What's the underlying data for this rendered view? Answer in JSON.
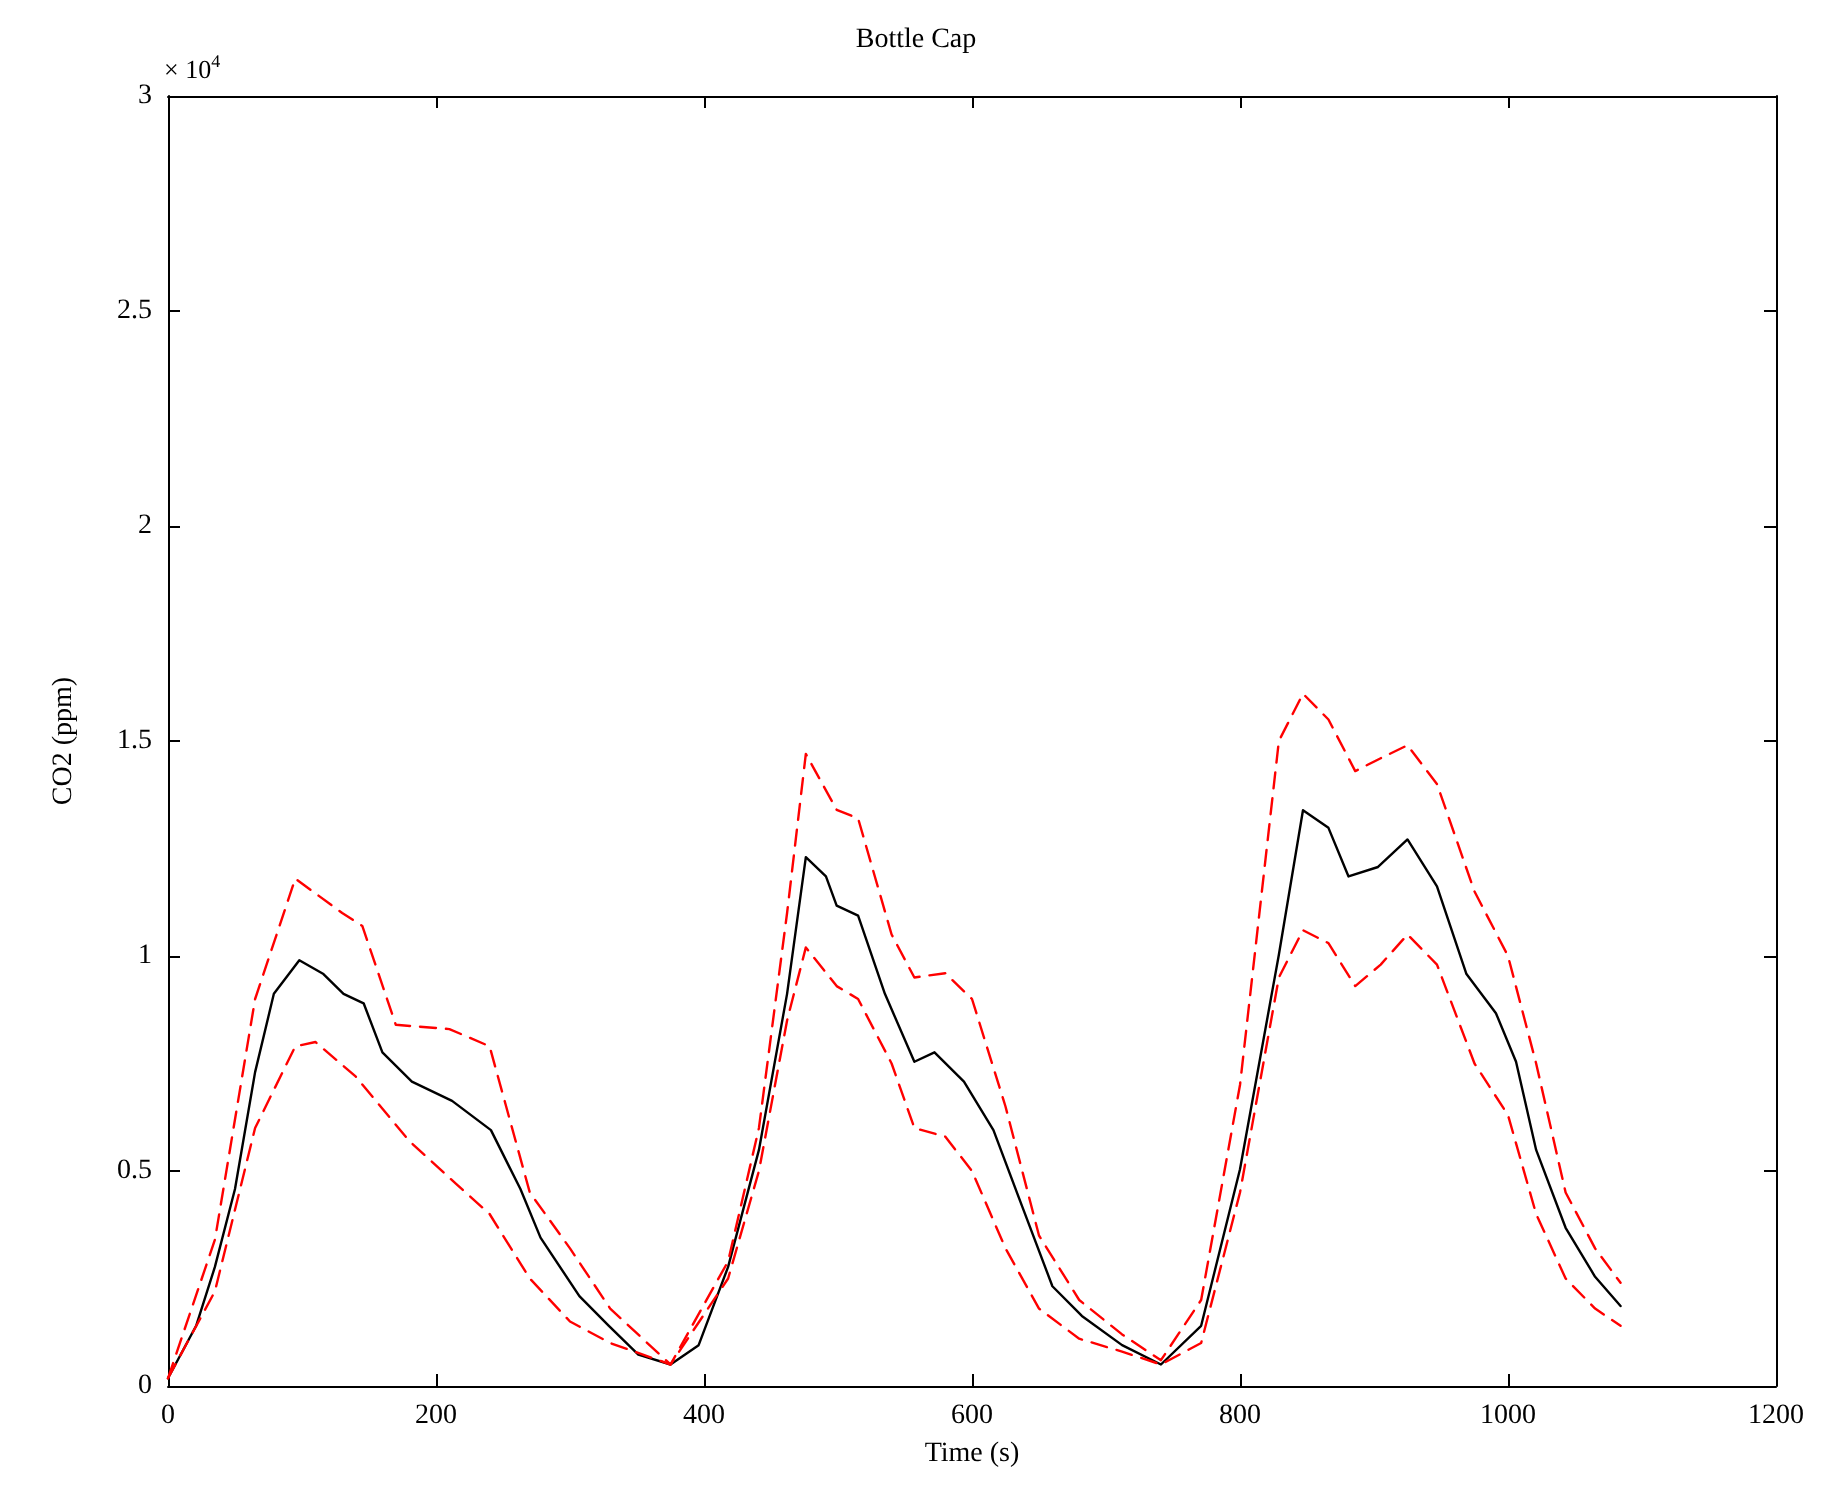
{
  "chart_data": {
    "type": "line",
    "title": "Bottle Cap",
    "xlabel": "Time (s)",
    "ylabel": "CO2 (ppm)",
    "annotations": [
      "× 10$^{4}$"
    ],
    "xlim": [
      0,
      1200
    ],
    "xticks": [
      0,
      200,
      400,
      600,
      800,
      1000,
      1200
    ],
    "ylim": [
      0,
      3
    ],
    "yticks": [
      0,
      0.5,
      1,
      1.5,
      2,
      2.5,
      3
    ],
    "grid": false,
    "marker": "none",
    "series": [
      {
        "color": "#000000",
        "line_style": "solid",
        "x": [
          0,
          21,
          35,
          50,
          65,
          79,
          98,
          116,
          131,
          146,
          160,
          182,
          212,
          241,
          263,
          278,
          307,
          329,
          351,
          375,
          396,
          418,
          441,
          462,
          476,
          491,
          499,
          515,
          535,
          557,
          572,
          594,
          616,
          638,
          660,
          682,
          712,
          741,
          771,
          800,
          829,
          847,
          866,
          881,
          903,
          925,
          947,
          969,
          991,
          1006,
          1021,
          1043,
          1065,
          1084
        ],
        "values": [
          0.018,
          0.14,
          0.277,
          0.458,
          0.73,
          0.912,
          0.99,
          0.958,
          0.912,
          0.89,
          0.776,
          0.708,
          0.663,
          0.595,
          0.458,
          0.345,
          0.209,
          0.14,
          0.073,
          0.05,
          0.095,
          0.277,
          0.549,
          0.912,
          1.23,
          1.185,
          1.117,
          1.094,
          0.912,
          0.754,
          0.776,
          0.708,
          0.595,
          0.413,
          0.232,
          0.163,
          0.095,
          0.05,
          0.14,
          0.504,
          1.003,
          1.339,
          1.298,
          1.185,
          1.207,
          1.271,
          1.162,
          0.958,
          0.867,
          0.754,
          0.549,
          0.368,
          0.254,
          0.186
        ]
      },
      {
        "color": "#ff0000",
        "line_style": "dashed",
        "x": [
          0,
          35,
          65,
          95,
          130,
          145,
          170,
          210,
          240,
          270,
          300,
          330,
          375,
          418,
          441,
          462,
          476,
          499,
          515,
          540,
          557,
          580,
          600,
          625,
          650,
          680,
          712,
          741,
          771,
          800,
          829,
          847,
          866,
          886,
          905,
          925,
          947,
          975,
          1000,
          1021,
          1043,
          1065,
          1084
        ],
        "values": [
          0.018,
          0.34,
          0.9,
          1.18,
          1.1,
          1.07,
          0.84,
          0.83,
          0.79,
          0.45,
          0.32,
          0.18,
          0.05,
          0.29,
          0.6,
          1.1,
          1.47,
          1.34,
          1.32,
          1.05,
          0.95,
          0.96,
          0.9,
          0.65,
          0.35,
          0.2,
          0.12,
          0.06,
          0.2,
          0.7,
          1.5,
          1.61,
          1.55,
          1.43,
          1.46,
          1.49,
          1.4,
          1.15,
          1.0,
          0.75,
          0.45,
          0.32,
          0.24
        ]
      },
      {
        "color": "#ff0000",
        "line_style": "dashed",
        "x": [
          0,
          35,
          65,
          95,
          110,
          140,
          180,
          215,
          240,
          270,
          300,
          330,
          375,
          418,
          441,
          462,
          476,
          499,
          515,
          540,
          557,
          580,
          600,
          625,
          650,
          680,
          712,
          741,
          771,
          800,
          829,
          847,
          866,
          886,
          905,
          925,
          947,
          975,
          1000,
          1021,
          1043,
          1065,
          1084
        ],
        "values": [
          0.018,
          0.22,
          0.6,
          0.79,
          0.8,
          0.72,
          0.57,
          0.47,
          0.4,
          0.25,
          0.15,
          0.1,
          0.05,
          0.25,
          0.5,
          0.85,
          1.02,
          0.93,
          0.9,
          0.75,
          0.6,
          0.58,
          0.5,
          0.32,
          0.18,
          0.11,
          0.08,
          0.05,
          0.1,
          0.45,
          0.95,
          1.06,
          1.03,
          0.93,
          0.98,
          1.05,
          0.98,
          0.75,
          0.63,
          0.4,
          0.25,
          0.18,
          0.14
        ]
      }
    ]
  }
}
